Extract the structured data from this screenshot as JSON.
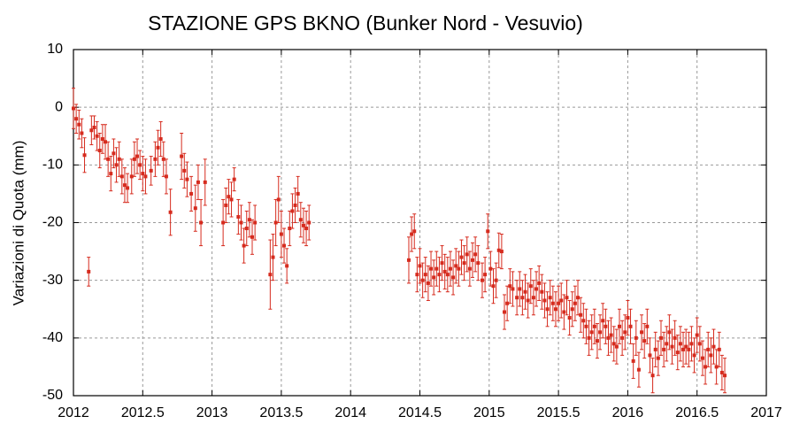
{
  "chart_data": {
    "type": "scatter",
    "title": "STAZIONE GPS BKNO (Bunker Nord - Vesuvio)",
    "y_label": "Variazioni di Quota (mm)",
    "color": "#d62b1e",
    "grid": true,
    "xlim": [
      2012,
      2017
    ],
    "xticks": [
      2012,
      2012.5,
      2013,
      2013.5,
      2014,
      2014.5,
      2015,
      2015.5,
      2016,
      2016.5,
      2017
    ],
    "ylim": [
      -50,
      10
    ],
    "yticks": [
      -50,
      -40,
      -30,
      -20,
      -10,
      0,
      10
    ],
    "x": [
      2012,
      2012.02,
      2012.04,
      2012.06,
      2012.08,
      2012.11,
      2012.13,
      2012.15,
      2012.17,
      2012.19,
      2012.21,
      2012.23,
      2012.25,
      2012.27,
      2012.29,
      2012.31,
      2012.33,
      2012.35,
      2012.37,
      2012.39,
      2012.42,
      2012.44,
      2012.46,
      2012.48,
      2012.5,
      2012.52,
      2012.56,
      2012.59,
      2012.61,
      2012.63,
      2012.65,
      2012.67,
      2012.7,
      2012.78,
      2012.8,
      2012.82,
      2012.85,
      2012.88,
      2012.9,
      2012.92,
      2012.95,
      2013.08,
      2013.1,
      2013.12,
      2013.14,
      2013.16,
      2013.19,
      2013.21,
      2013.23,
      2013.25,
      2013.27,
      2013.29,
      2013.31,
      2013.42,
      2013.44,
      2013.46,
      2013.48,
      2013.5,
      2013.52,
      2013.54,
      2013.56,
      2013.58,
      2013.6,
      2013.62,
      2013.64,
      2013.66,
      2013.68,
      2013.7,
      2014.42,
      2014.44,
      2014.46,
      2014.48,
      2014.5,
      2014.52,
      2014.54,
      2014.56,
      2014.58,
      2014.6,
      2014.62,
      2014.64,
      2014.66,
      2014.68,
      2014.7,
      2014.72,
      2014.74,
      2014.76,
      2014.78,
      2014.8,
      2014.82,
      2014.84,
      2014.86,
      2014.88,
      2014.9,
      2014.92,
      2014.95,
      2014.97,
      2014.99,
      2015.01,
      2015.03,
      2015.05,
      2015.07,
      2015.09,
      2015.11,
      2015.13,
      2015.15,
      2015.17,
      2015.2,
      2015.22,
      2015.24,
      2015.26,
      2015.28,
      2015.3,
      2015.32,
      2015.34,
      2015.36,
      2015.38,
      2015.4,
      2015.42,
      2015.44,
      2015.46,
      2015.48,
      2015.5,
      2015.52,
      2015.54,
      2015.56,
      2015.58,
      2015.6,
      2015.62,
      2015.64,
      2015.66,
      2015.68,
      2015.7,
      2015.72,
      2015.74,
      2015.76,
      2015.78,
      2015.8,
      2015.82,
      2015.84,
      2015.86,
      2015.88,
      2015.9,
      2015.92,
      2015.94,
      2015.96,
      2015.98,
      2016,
      2016.02,
      2016.04,
      2016.06,
      2016.08,
      2016.1,
      2016.12,
      2016.14,
      2016.16,
      2016.18,
      2016.2,
      2016.22,
      2016.24,
      2016.26,
      2016.28,
      2016.3,
      2016.32,
      2016.34,
      2016.36,
      2016.38,
      2016.4,
      2016.42,
      2016.44,
      2016.46,
      2016.48,
      2016.5,
      2016.52,
      2016.54,
      2016.56,
      2016.58,
      2016.6,
      2016.62,
      2016.64,
      2016.66,
      2016.68,
      2016.7
    ],
    "values": [
      -0.2,
      -2,
      -3,
      -4.5,
      -8.3,
      -28.5,
      -4,
      -3.5,
      -5,
      -7.5,
      -5.5,
      -6,
      -9,
      -11.5,
      -8,
      -10,
      -9,
      -12,
      -13.5,
      -14,
      -12,
      -9,
      -8.5,
      -10,
      -11.5,
      -12,
      -11,
      -9,
      -7,
      -5.5,
      -9,
      -12,
      -18.2,
      -8.5,
      -11,
      -12.5,
      -15,
      -17.5,
      -13,
      -20,
      -13,
      -20,
      -17,
      -15.5,
      -16,
      -12.5,
      -19,
      -20,
      -24,
      -21,
      -19.5,
      -22.5,
      -20,
      -29,
      -26,
      -20,
      -16,
      -22,
      -24,
      -27.5,
      -21,
      -18,
      -17,
      -15,
      -19.5,
      -20.5,
      -21,
      -20,
      -26.5,
      -22,
      -21.5,
      -29,
      -27.5,
      -30,
      -29,
      -30.5,
      -28,
      -29.5,
      -28,
      -29,
      -27,
      -28.5,
      -29,
      -28,
      -29.5,
      -27.5,
      -28,
      -26,
      -27,
      -25.5,
      -28,
      -26.5,
      -25.5,
      -27,
      -30,
      -29,
      -21.5,
      -28,
      -31,
      -30,
      -24.8,
      -25,
      -35.5,
      -34,
      -31,
      -31.5,
      -33,
      -31.5,
      -33,
      -32,
      -33.5,
      -31,
      -33,
      -31.5,
      -30.5,
      -32,
      -33.5,
      -35,
      -33,
      -34,
      -35,
      -34,
      -33.5,
      -35.5,
      -33,
      -36.5,
      -35,
      -34,
      -33,
      -36,
      -37,
      -38,
      -40,
      -39,
      -38,
      -40.5,
      -39,
      -37,
      -38,
      -40,
      -39.5,
      -41,
      -41.5,
      -38,
      -40,
      -39,
      -36.5,
      -38,
      -44,
      -40,
      -45.5,
      -39,
      -40.5,
      -38,
      -43,
      -46.5,
      -42,
      -43.5,
      -40,
      -42,
      -41,
      -39,
      -41.5,
      -40,
      -42.5,
      -41,
      -42,
      -41.5,
      -42,
      -41,
      -43,
      -39.5,
      -41,
      -43.5,
      -45,
      -42,
      -43,
      -41.5,
      -45,
      -42,
      -46,
      -46.5
    ],
    "errors": [
      3.5,
      2.5,
      2.5,
      2.5,
      3,
      2.5,
      2.5,
      2,
      2.5,
      3,
      2.5,
      3,
      3,
      3,
      2.5,
      3,
      3,
      3,
      3,
      2.5,
      3,
      3,
      3,
      2.5,
      3,
      3,
      2.5,
      3,
      3,
      3,
      3,
      3,
      4,
      4,
      3,
      3,
      3,
      4,
      3,
      4,
      4,
      4,
      3,
      3,
      3,
      2,
      3,
      3,
      3,
      3,
      3,
      3,
      3,
      6,
      4,
      4,
      4,
      4,
      3,
      3,
      3,
      3,
      3,
      3,
      3,
      3,
      3,
      3,
      4,
      3,
      3,
      3,
      3,
      3,
      3,
      3,
      3,
      3,
      3,
      3,
      3,
      3,
      3,
      3,
      3,
      3,
      3,
      3,
      3,
      3,
      3,
      3,
      3,
      3,
      3,
      3,
      3,
      3,
      3,
      3,
      3,
      3,
      3,
      3,
      3,
      3,
      3,
      3,
      3,
      3,
      3,
      3,
      3,
      3,
      3,
      3,
      3,
      3,
      3,
      3,
      3,
      3,
      3,
      3,
      3,
      3,
      3,
      3,
      3,
      3,
      3,
      3,
      3,
      3,
      3,
      3,
      3,
      3,
      3,
      3,
      3,
      3,
      3,
      3,
      3,
      3,
      3,
      3,
      3,
      3,
      3,
      3,
      3,
      3,
      3,
      3,
      3,
      3,
      3,
      3,
      3,
      3,
      3,
      3,
      3,
      3,
      3,
      3,
      3,
      3,
      3,
      3,
      3,
      3,
      3,
      3,
      3,
      3,
      3,
      3,
      3,
      3
    ]
  }
}
